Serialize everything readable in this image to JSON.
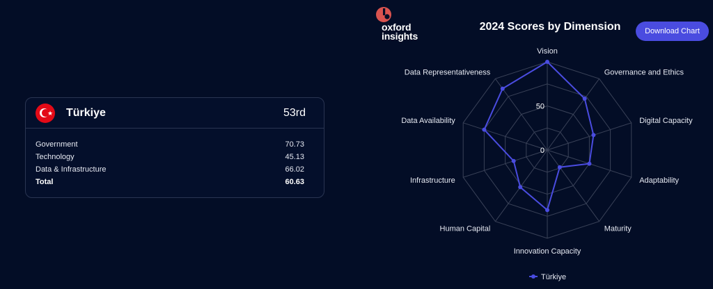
{
  "card": {
    "country": "Türkiye",
    "rank": "53rd",
    "rows": [
      {
        "label": "Government",
        "value": "70.73"
      },
      {
        "label": "Technology",
        "value": "45.13"
      },
      {
        "label": "Data & Infrastructure",
        "value": "66.02"
      },
      {
        "label": "Total",
        "value": "60.63"
      }
    ]
  },
  "logo": {
    "line1": "oxford",
    "line2": "insights",
    "icon": "oxford-insights-logo-icon"
  },
  "download_label": "Download Chart",
  "colors": {
    "accent": "#4a4ce0",
    "series": "#4a4ce0",
    "grid": "#3a4258",
    "background": "#030d26"
  },
  "chart_data": {
    "type": "radar",
    "title": "2024 Scores by Dimension",
    "axes": [
      "Vision",
      "Governance and Ethics",
      "Digital Capacity",
      "Adaptability",
      "Maturity",
      "Innovation Capacity",
      "Human Capital",
      "Infrastructure",
      "Data Availability",
      "Data Representativeness"
    ],
    "series": [
      {
        "name": "Türkiye",
        "values": [
          100,
          72,
          55,
          50,
          24,
          68,
          52,
          40,
          75,
          86
        ]
      }
    ],
    "range": [
      0,
      100
    ],
    "tick_labels": [
      "0",
      "50"
    ],
    "grid": true,
    "legend": "bottom"
  }
}
